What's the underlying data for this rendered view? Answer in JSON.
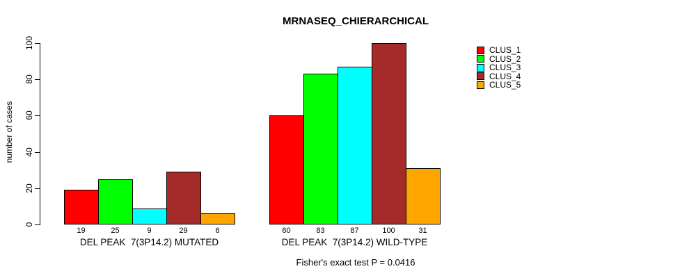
{
  "title": "MRNASEQ_CHIERARCHICAL",
  "y_axis_label": "number of cases",
  "footer_annotation": "Fisher's exact test P = 0.0416",
  "chart_data": {
    "type": "bar",
    "title": "MRNASEQ_CHIERARCHICAL",
    "xlabel": "",
    "ylabel": "number of cases",
    "ylim": [
      0,
      100
    ],
    "y_ticks": [
      0,
      20,
      40,
      60,
      80,
      100
    ],
    "grid": false,
    "bar_value_labels_shown": true,
    "legend_position": "top-right",
    "categories": [
      "DEL PEAK  7(3P14.2) MUTATED",
      "DEL PEAK  7(3P14.2) WILD-TYPE"
    ],
    "series": [
      {
        "name": "CLUS_1",
        "color": "#FF0000",
        "values": [
          19,
          60
        ]
      },
      {
        "name": "CLUS_2",
        "color": "#00FF00",
        "values": [
          25,
          83
        ]
      },
      {
        "name": "CLUS_3",
        "color": "#00FFFF",
        "values": [
          9,
          87
        ]
      },
      {
        "name": "CLUS_4",
        "color": "#A52A2A",
        "values": [
          29,
          100
        ]
      },
      {
        "name": "CLUS_5",
        "color": "#FFA500",
        "values": [
          6,
          31
        ]
      }
    ],
    "annotation": "Fisher's exact test P = 0.0416"
  },
  "legend": {
    "items": [
      {
        "label": "CLUS_1",
        "color": "#FF0000"
      },
      {
        "label": "CLUS_2",
        "color": "#00FF00"
      },
      {
        "label": "CLUS_3",
        "color": "#00FFFF"
      },
      {
        "label": "CLUS_4",
        "color": "#A52A2A"
      },
      {
        "label": "CLUS_5",
        "color": "#FFA500"
      }
    ]
  }
}
